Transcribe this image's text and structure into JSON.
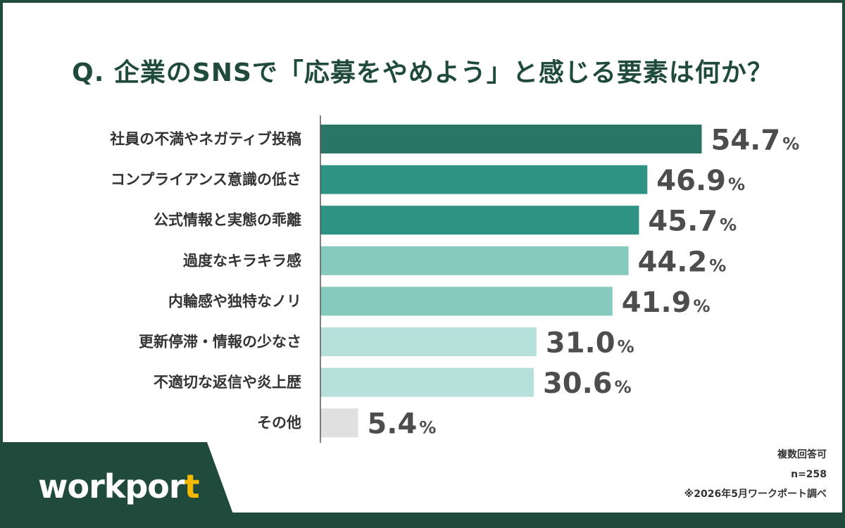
{
  "title": "Q. 企業のSNSで「応募をやめよう」と感じる要素は何か？",
  "logo": {
    "text_main": "workpor",
    "text_accent": "t"
  },
  "notes": {
    "multiple": "複数回答可",
    "sample": "n=258",
    "source": "※2026年5月ワークポート調べ"
  },
  "colors": {
    "brand": "#1f4a3c",
    "bar_top": "#2a7565",
    "bar_high": "#2f9383",
    "bar_mid": "#86c9bd",
    "bar_low": "#b6e0da",
    "bar_other": "#e0e0e0"
  },
  "chart_data": {
    "type": "bar",
    "orientation": "horizontal",
    "title": "Q. 企業のSNSで「応募をやめよう」と感じる要素は何か？",
    "unit": "%",
    "categories": [
      "社員の不満やネガティブ投稿",
      "コンプライアンス意識の低さ",
      "公式情報と実態の乖離",
      "過度なキラキラ感",
      "内輪感や独特なノリ",
      "更新停滞・情報の少なさ",
      "不適切な返信や炎上歴",
      "その他"
    ],
    "values": [
      54.7,
      46.9,
      45.7,
      44.2,
      41.9,
      31.0,
      30.6,
      5.4
    ],
    "value_labels": [
      "54.7",
      "46.9",
      "45.7",
      "44.2",
      "41.9",
      "31.0",
      "30.6",
      "5.4"
    ],
    "bar_colors": [
      "#2a7565",
      "#2f9383",
      "#2f9383",
      "#86c9bd",
      "#86c9bd",
      "#b6e0da",
      "#b6e0da",
      "#e0e0e0"
    ],
    "xlim": [
      0,
      100
    ],
    "grid": false
  }
}
